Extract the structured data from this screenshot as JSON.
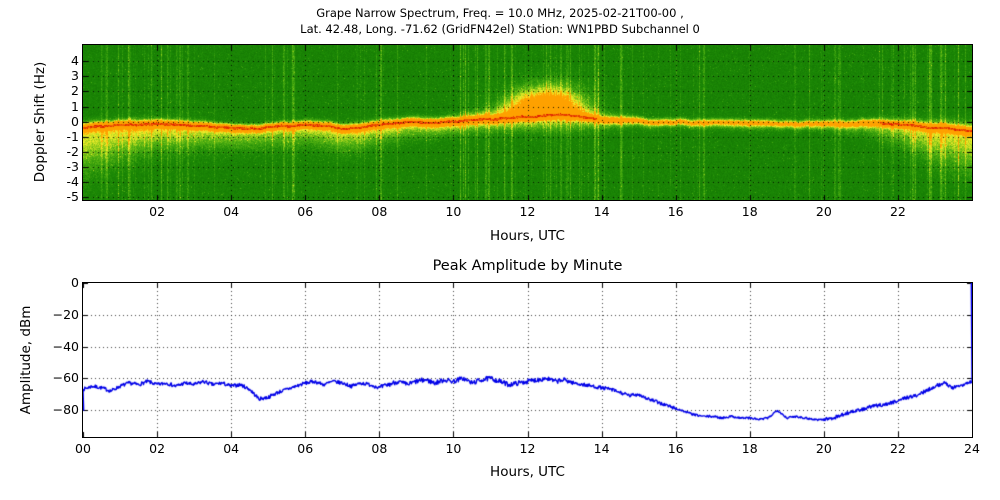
{
  "figure": {
    "title_line1": "Grape Narrow Spectrum, Freq. = 10.0 MHz, 2025-02-21T00-00 ,",
    "title_line2": "Lat.  42.48, Long. -71.62 (GridFN42el) Station: WN1PBD Subchannel 0"
  },
  "chart_data": [
    {
      "type": "heatmap",
      "name": "doppler-spectrogram",
      "xlabel": "Hours, UTC",
      "ylabel": "Doppler Shift (Hz)",
      "xlim": [
        0,
        24
      ],
      "ylim": [
        -5.17,
        5.06
      ],
      "xtick_values": [
        2,
        4,
        6,
        8,
        10,
        12,
        14,
        16,
        18,
        20,
        22
      ],
      "xtick_labels": [
        "02",
        "04",
        "06",
        "08",
        "10",
        "12",
        "14",
        "16",
        "18",
        "20",
        "22"
      ],
      "ytick_values": [
        4,
        3,
        2,
        1,
        0,
        -1,
        -2,
        -3,
        -4,
        -5
      ],
      "ytick_labels": [
        "4",
        "3",
        "2",
        "1",
        "0",
        "-1",
        "-2",
        "-3",
        "-4",
        "-5"
      ],
      "grid": "dotted",
      "colormap_stops": [
        [
          0,
          "#0a6400"
        ],
        [
          0.38,
          "#1d8a06"
        ],
        [
          0.58,
          "#55b313"
        ],
        [
          0.7,
          "#abd51d"
        ],
        [
          0.8,
          "#f2ee2b"
        ],
        [
          0.9,
          "#ffa400"
        ],
        [
          1,
          "#dc1402"
        ]
      ],
      "carrier_trace": {
        "hours": [
          0,
          1,
          2,
          3,
          4,
          5,
          6,
          7,
          8,
          9,
          10,
          11,
          12,
          13,
          14,
          15,
          16,
          17,
          18,
          19,
          20,
          21,
          22,
          23,
          24
        ],
        "center_hz": [
          -0.45,
          -0.2,
          -0.1,
          -0.2,
          -0.3,
          -0.4,
          -0.3,
          -0.55,
          -0.4,
          -0.2,
          -0.1,
          0,
          0.25,
          0.35,
          0,
          -0.15,
          -0.2,
          -0.25,
          -0.3,
          -0.3,
          -0.35,
          -0.3,
          -0.3,
          -0.45,
          -0.55
        ],
        "intensity": [
          0.95,
          1,
          1,
          0.9,
          0.85,
          0.8,
          0.85,
          0.9,
          0.9,
          0.9,
          0.95,
          0.95,
          1,
          1,
          0.65,
          0.5,
          0.45,
          0.45,
          0.5,
          0.45,
          0.5,
          0.6,
          0.8,
          0.95,
          0.95
        ],
        "spread_down_hz": [
          3.6,
          2.6,
          2,
          1.8,
          1.6,
          1.5,
          1.6,
          1.8,
          1.5,
          1.2,
          1,
          0.9,
          1.1,
          1.2,
          0.8,
          0.5,
          0.45,
          0.5,
          0.6,
          0.5,
          0.6,
          0.9,
          1.6,
          2.6,
          3.2
        ],
        "spread_up_hz": [
          0.6,
          0.5,
          0.5,
          0.5,
          0.4,
          0.4,
          0.45,
          0.5,
          0.5,
          0.5,
          0.55,
          0.9,
          2.1,
          1.6,
          0.7,
          0.35,
          0.3,
          0.3,
          0.35,
          0.3,
          0.35,
          0.45,
          0.55,
          0.7,
          0.8
        ]
      },
      "plume": {
        "hour": 12.55,
        "hour_sigma": 0.75,
        "peak_offset_hz": 0.9,
        "hz_sigma": 0.85,
        "strength": 0.5
      },
      "streak_zones": [
        [
          0.5,
          3.2,
          1
        ],
        [
          5,
          6.5,
          0.5
        ],
        [
          7.5,
          8.5,
          0.4
        ],
        [
          10,
          12,
          0.9
        ],
        [
          12.5,
          14.8,
          0.8
        ],
        [
          16.5,
          17.3,
          0.3
        ],
        [
          19,
          20.6,
          0.5
        ],
        [
          21,
          24,
          0.9
        ]
      ]
    },
    {
      "type": "line",
      "name": "peak-amplitude",
      "title": "Peak Amplitude by Minute",
      "xlabel": "Hours, UTC",
      "ylabel": "Amplitude, dBm",
      "xlim": [
        0,
        24
      ],
      "ylim": [
        -97,
        0
      ],
      "xtick_values": [
        0,
        2,
        4,
        6,
        8,
        10,
        12,
        14,
        16,
        18,
        20,
        22,
        24
      ],
      "xtick_labels": [
        "00",
        "02",
        "04",
        "06",
        "08",
        "10",
        "12",
        "14",
        "16",
        "18",
        "20",
        "22",
        "24"
      ],
      "ytick_values": [
        0,
        -20,
        -40,
        -60,
        -80
      ],
      "ytick_labels": [
        "0",
        "−20",
        "−40",
        "−60",
        "−80"
      ],
      "grid": "dotted",
      "line_color": "#0000e8",
      "jitter_db": 2.2,
      "x": [
        0,
        0.25,
        0.5,
        0.75,
        1,
        1.25,
        1.5,
        1.75,
        2,
        2.25,
        2.5,
        2.75,
        3,
        3.25,
        3.5,
        3.75,
        4,
        4.25,
        4.5,
        4.75,
        5,
        5.25,
        5.5,
        5.75,
        6,
        6.25,
        6.5,
        6.75,
        7,
        7.25,
        7.5,
        7.75,
        8,
        8.25,
        8.5,
        8.75,
        9,
        9.25,
        9.5,
        9.75,
        10,
        10.25,
        10.5,
        10.75,
        11,
        11.25,
        11.5,
        11.75,
        12,
        12.25,
        12.5,
        12.75,
        13,
        13.25,
        13.5,
        13.75,
        14,
        14.25,
        14.5,
        14.75,
        15,
        15.25,
        15.5,
        15.75,
        16,
        16.25,
        16.5,
        16.75,
        17,
        17.25,
        17.5,
        17.75,
        18,
        18.25,
        18.5,
        18.75,
        19,
        19.25,
        19.5,
        19.75,
        20,
        20.25,
        20.5,
        20.75,
        21,
        21.25,
        21.5,
        21.75,
        22,
        22.25,
        22.5,
        22.75,
        23,
        23.25,
        23.5,
        23.75,
        24
      ],
      "y": [
        -67,
        -65,
        -66,
        -68,
        -65,
        -63,
        -64,
        -62,
        -64,
        -63,
        -65,
        -63,
        -64,
        -62,
        -64,
        -63,
        -65,
        -64,
        -67,
        -73,
        -72,
        -69,
        -67,
        -65,
        -63,
        -62,
        -64,
        -62,
        -63,
        -65,
        -63,
        -64,
        -66,
        -64,
        -62,
        -64,
        -62,
        -61,
        -63,
        -61,
        -62,
        -60,
        -63,
        -61,
        -60,
        -62,
        -64,
        -63,
        -62,
        -61,
        -60,
        -62,
        -61,
        -63,
        -64,
        -65,
        -66,
        -67,
        -69,
        -71,
        -70,
        -73,
        -75,
        -77,
        -79,
        -81,
        -83,
        -84,
        -84,
        -85,
        -84,
        -85,
        -85,
        -86,
        -85,
        -80,
        -85,
        -84,
        -85,
        -86,
        -86,
        -85,
        -83,
        -81,
        -80,
        -78,
        -77,
        -76,
        -74,
        -72,
        -71,
        -68,
        -65,
        -63,
        -66,
        -64,
        -62
      ],
      "left_edge_spike_dbm": -80.5,
      "right_edge_spike_dbm": 0
    }
  ]
}
